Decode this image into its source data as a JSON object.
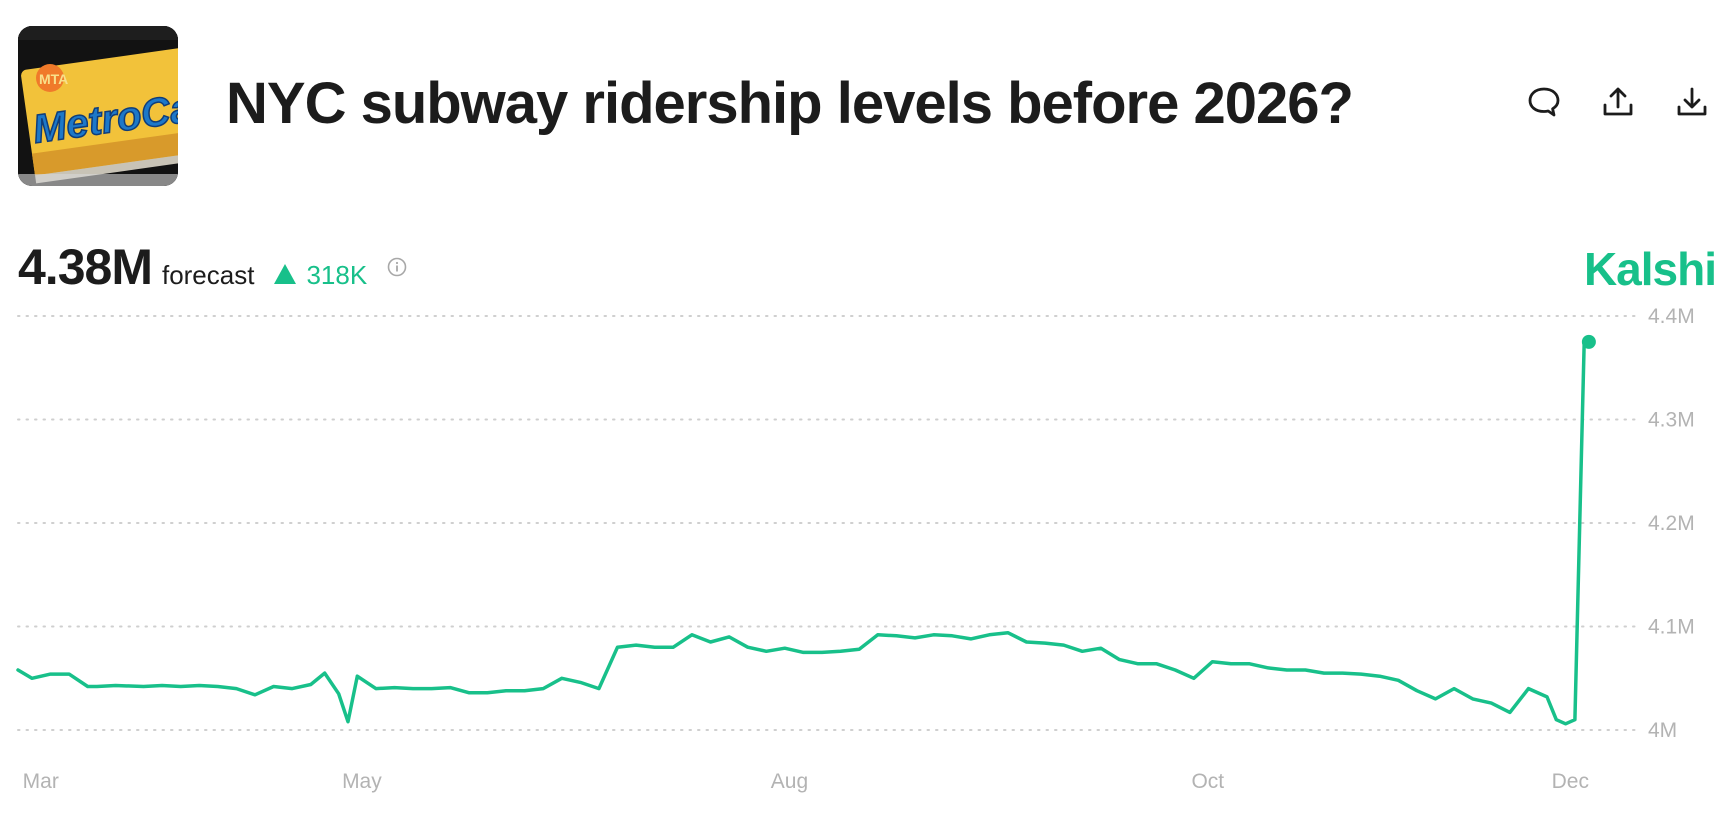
{
  "header": {
    "title": "NYC subway ridership levels before 2026?",
    "thumbnail_text": "MetroCa",
    "thumbnail_badge": "MTA"
  },
  "actions": [
    {
      "icon": "comment-icon"
    },
    {
      "icon": "share-icon"
    },
    {
      "icon": "download-icon"
    }
  ],
  "summary": {
    "value": "4.38M",
    "label": "forecast",
    "change": "318K",
    "change_direction": "up"
  },
  "brand": "Kalshi",
  "colors": {
    "accent": "#18c08a",
    "grid": "#cfcfcf",
    "tick": "#b3b3b3",
    "text": "#1c1c1c"
  },
  "chart_data": {
    "type": "line",
    "title": "",
    "xlabel": "",
    "ylabel": "",
    "ylim": [
      4.0,
      4.4
    ],
    "yticks": [
      4.4,
      4.3,
      4.2,
      4.1,
      4.0
    ],
    "ytick_labels": [
      "4.4M",
      "4.3M",
      "4.2M",
      "4.1M",
      "4M"
    ],
    "xticks": [
      0,
      73,
      165,
      255,
      333
    ],
    "xtick_labels": [
      "Mar",
      "May",
      "Aug",
      "Oct",
      "Dec"
    ],
    "xlim": [
      -1,
      348
    ],
    "series": [
      {
        "name": "Forecast",
        "color": "#18c08a",
        "x": [
          -1,
          2,
          6,
          10,
          14,
          16,
          20,
          26,
          30,
          34,
          38,
          42,
          46,
          50,
          54,
          58,
          62,
          65,
          68,
          70,
          72,
          76,
          80,
          84,
          88,
          92,
          96,
          100,
          104,
          108,
          112,
          116,
          120,
          124,
          128,
          132,
          136,
          140,
          144,
          148,
          152,
          156,
          160,
          164,
          168,
          172,
          176,
          180,
          184,
          188,
          192,
          196,
          200,
          204,
          208,
          212,
          216,
          220,
          224,
          228,
          232,
          236,
          240,
          244,
          248,
          252,
          256,
          260,
          264,
          268,
          272,
          276,
          280,
          284,
          288,
          292,
          296,
          300,
          304,
          308,
          312,
          316,
          320,
          324,
          328,
          330,
          332,
          334,
          336,
          337
        ],
        "values": [
          4.058,
          4.05,
          4.054,
          4.054,
          4.042,
          4.042,
          4.043,
          4.042,
          4.043,
          4.042,
          4.043,
          4.042,
          4.04,
          4.034,
          4.042,
          4.04,
          4.044,
          4.055,
          4.035,
          4.008,
          4.052,
          4.04,
          4.041,
          4.04,
          4.04,
          4.041,
          4.036,
          4.036,
          4.038,
          4.038,
          4.04,
          4.05,
          4.046,
          4.04,
          4.08,
          4.082,
          4.08,
          4.08,
          4.092,
          4.085,
          4.09,
          4.08,
          4.076,
          4.079,
          4.075,
          4.075,
          4.076,
          4.078,
          4.092,
          4.091,
          4.089,
          4.092,
          4.091,
          4.088,
          4.092,
          4.094,
          4.085,
          4.084,
          4.082,
          4.076,
          4.079,
          4.068,
          4.064,
          4.064,
          4.058,
          4.05,
          4.066,
          4.064,
          4.064,
          4.06,
          4.058,
          4.058,
          4.055,
          4.055,
          4.054,
          4.052,
          4.048,
          4.038,
          4.03,
          4.04,
          4.03,
          4.026,
          4.017,
          4.04,
          4.032,
          4.01,
          4.006,
          4.01,
          4.375,
          4.375
        ]
      }
    ]
  }
}
